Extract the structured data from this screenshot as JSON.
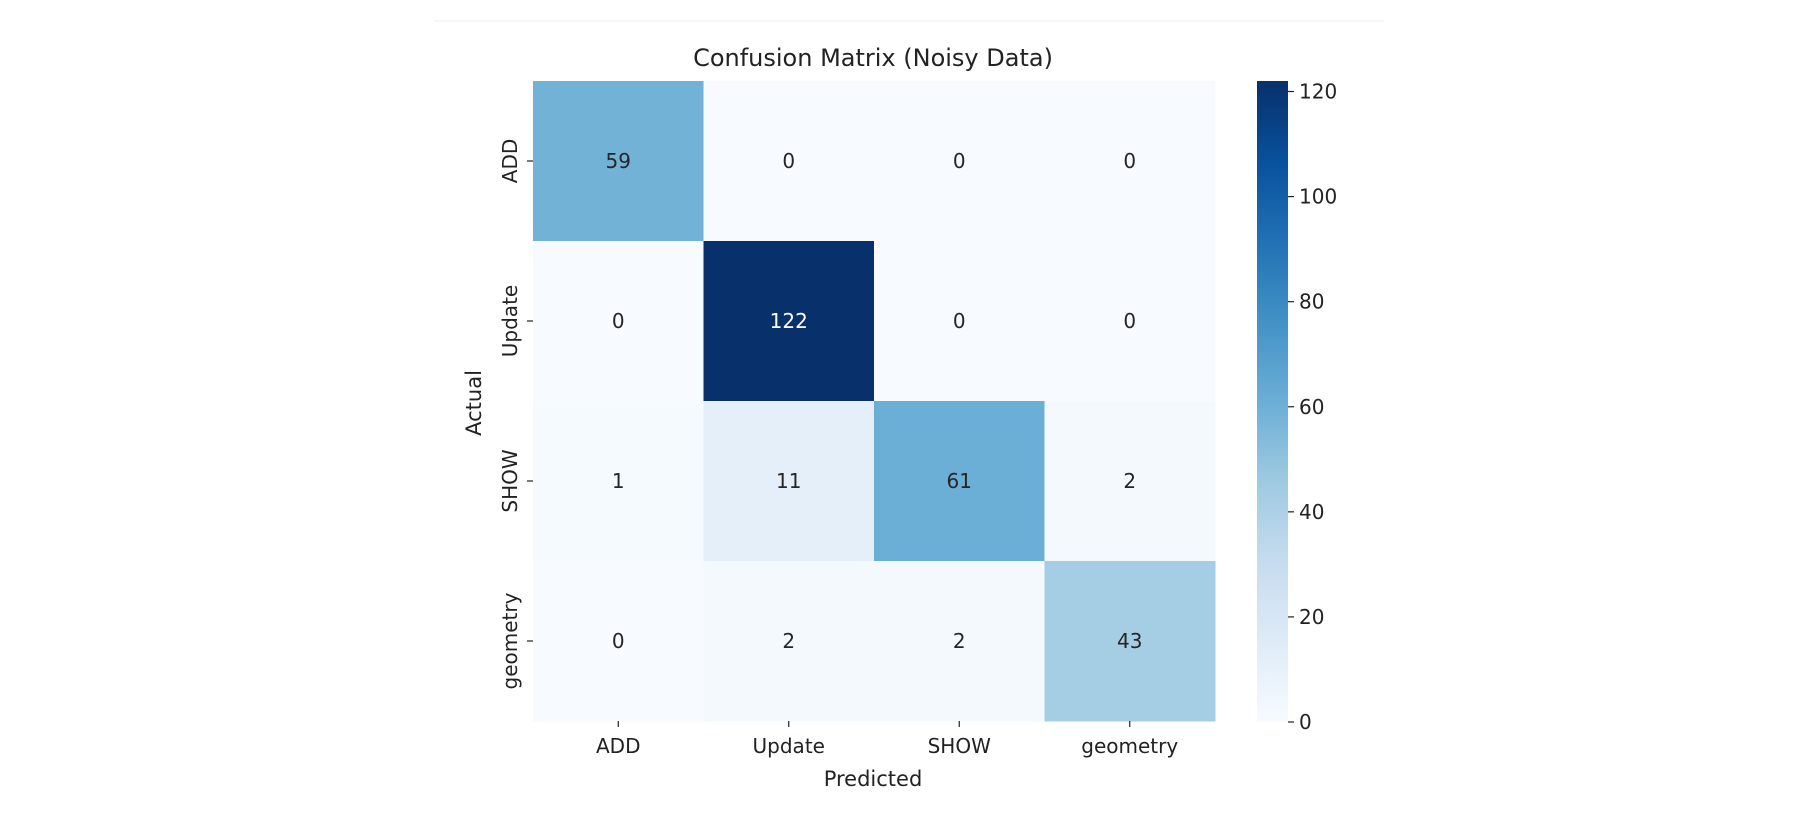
{
  "chart_data": {
    "type": "heatmap",
    "title": "Confusion Matrix (Noisy Data)",
    "xlabel": "Predicted",
    "ylabel": "Actual",
    "x_categories": [
      "ADD",
      "Update",
      "SHOW",
      "geometry"
    ],
    "y_categories": [
      "ADD",
      "Update",
      "SHOW",
      "geometry"
    ],
    "values": [
      [
        59,
        0,
        0,
        0
      ],
      [
        0,
        122,
        0,
        0
      ],
      [
        1,
        11,
        61,
        2
      ],
      [
        0,
        2,
        2,
        43
      ]
    ],
    "colormap": "Blues",
    "vmin": 0,
    "vmax": 122,
    "colorbar_ticks": [
      0,
      20,
      40,
      60,
      80,
      100,
      120
    ],
    "colorbar_tick_labels": [
      "0",
      "20",
      "40",
      "60",
      "80",
      "100",
      "120"
    ]
  }
}
